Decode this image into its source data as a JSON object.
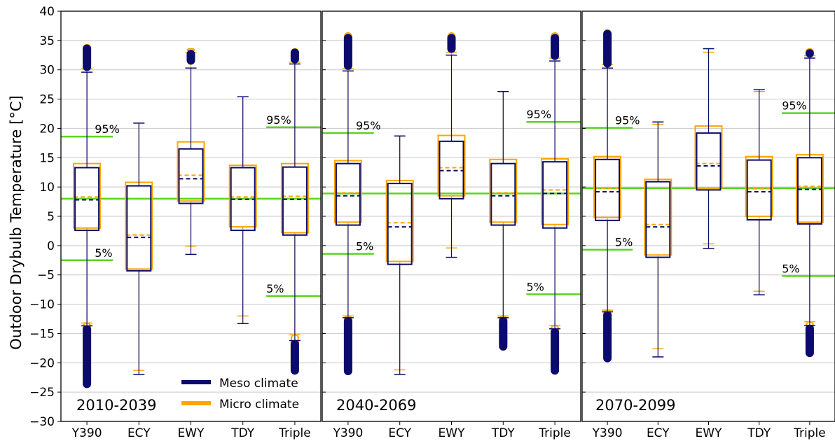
{
  "chart_data": {
    "type": "box",
    "ylabel": "Outdoor Drybulb Temperature [°C]",
    "ylim": [
      -30,
      40
    ],
    "yticks": [
      -30,
      -25,
      -20,
      -15,
      -10,
      -5,
      0,
      5,
      10,
      15,
      20,
      25,
      30,
      35,
      40
    ],
    "grid": "horizontal",
    "categories": [
      "Y390",
      "ECY",
      "EWY",
      "TDY",
      "Triple"
    ],
    "legend": {
      "position": "bottom, first panel",
      "entries": [
        {
          "label": "Meso climate",
          "color": "#0b0b6e"
        },
        {
          "label": "Micro climate",
          "color": "#ffa500"
        }
      ]
    },
    "colors": {
      "meso": "#0b0b6e",
      "micro": "#ffa500",
      "percentile_line": "#5bd41f",
      "grid": "#c8c8c8"
    },
    "panels": [
      {
        "title": "2010-2039",
        "median_line": 8.0,
        "p95": {
          "value": 18.6,
          "label": "95%",
          "placement": "left"
        },
        "p95b": {
          "value": 20.2,
          "label": "95%",
          "placement": "right"
        },
        "p5": {
          "value": -2.5,
          "label": "5%",
          "placement": "left"
        },
        "p5b": {
          "value": -8.6,
          "label": "5%",
          "placement": "right"
        },
        "boxes": [
          {
            "category": "Y390",
            "meso": {
              "whisker_low": -13.7,
              "q1": 2.6,
              "median": 7.8,
              "q3": 13.3,
              "whisker_high": 29.6,
              "outliers_low": [
                -24.2,
                -13.7
              ],
              "outliers_high": [
                29.9,
                34.2
              ]
            },
            "micro": {
              "whisker_low": -13.2,
              "q1": 3.0,
              "median": 8.3,
              "q3": 14.0,
              "whisker_high": 30.2,
              "outliers_low": [
                -23.2,
                -13.2
              ],
              "outliers_high": [
                30.5,
                34.3
              ]
            }
          },
          {
            "category": "ECY",
            "meso": {
              "whisker_low": -22.0,
              "q1": -4.3,
              "median": 1.4,
              "q3": 10.2,
              "whisker_high": 20.9
            },
            "micro": {
              "whisker_low": -21.3,
              "q1": -4.0,
              "median": 1.8,
              "q3": 10.8,
              "whisker_high": 20.9
            }
          },
          {
            "category": "EWY",
            "meso": {
              "whisker_low": -1.5,
              "q1": 7.2,
              "median": 11.4,
              "q3": 16.5,
              "whisker_high": 30.3,
              "outliers_high": [
                31.0,
                33.3
              ]
            },
            "micro": {
              "whisker_low": -0.1,
              "q1": 7.6,
              "median": 12.0,
              "q3": 17.7,
              "whisker_high": 32.9,
              "outliers_high": [
                33.2,
                33.6
              ]
            }
          },
          {
            "category": "TDY",
            "meso": {
              "whisker_low": -13.3,
              "q1": 2.6,
              "median": 7.9,
              "q3": 13.3,
              "whisker_high": 25.4
            },
            "micro": {
              "whisker_low": -12.0,
              "q1": 3.2,
              "median": 8.3,
              "q3": 13.7,
              "whisker_high": 25.4
            }
          },
          {
            "category": "Triple",
            "meso": {
              "whisker_low": -16.2,
              "q1": 1.8,
              "median": 7.9,
              "q3": 13.4,
              "whisker_high": 31.0,
              "outliers_low": [
                -21.9,
                -16.2
              ],
              "outliers_high": [
                31.2,
                33.5
              ]
            },
            "micro": {
              "whisker_low": -15.2,
              "q1": 2.2,
              "median": 8.4,
              "q3": 14.0,
              "whisker_high": 31.3,
              "outliers_low": [
                -21.0,
                -15.2
              ],
              "outliers_high": [
                31.5,
                33.6
              ]
            }
          }
        ]
      },
      {
        "title": "2040-2069",
        "median_line": 8.9,
        "p95": {
          "value": 19.2,
          "label": "95%",
          "placement": "left"
        },
        "p95b": {
          "value": 21.1,
          "label": "95%",
          "placement": "right"
        },
        "p5": {
          "value": -1.4,
          "label": "5%",
          "placement": "left"
        },
        "p5b": {
          "value": -8.3,
          "label": "5%",
          "placement": "right"
        },
        "boxes": [
          {
            "category": "Y390",
            "meso": {
              "whisker_low": -12.3,
              "q1": 3.5,
              "median": 8.5,
              "q3": 14.0,
              "whisker_high": 29.8,
              "outliers_low": [
                -22.0,
                -12.3
              ],
              "outliers_high": [
                30.1,
                36.0
              ]
            },
            "micro": {
              "whisker_low": -12.0,
              "q1": 4.0,
              "median": 9.0,
              "q3": 14.5,
              "whisker_high": 30.2,
              "outliers_low": [
                -21.7,
                -12.0
              ],
              "outliers_high": [
                30.5,
                36.3
              ]
            }
          },
          {
            "category": "ECY",
            "meso": {
              "whisker_low": -22.0,
              "q1": -3.2,
              "median": 3.2,
              "q3": 10.6,
              "whisker_high": 18.7
            },
            "micro": {
              "whisker_low": -21.2,
              "q1": -2.7,
              "median": 3.9,
              "q3": 11.1,
              "whisker_high": 18.7
            }
          },
          {
            "category": "EWY",
            "meso": {
              "whisker_low": -2.0,
              "q1": 8.0,
              "median": 12.8,
              "q3": 17.8,
              "whisker_high": 32.5,
              "outliers_high": [
                33.0,
                36.0
              ]
            },
            "micro": {
              "whisker_low": -0.4,
              "q1": 8.5,
              "median": 13.3,
              "q3": 18.8,
              "whisker_high": 33.0,
              "outliers_high": [
                34.0,
                36.3
              ]
            }
          },
          {
            "category": "TDY",
            "meso": {
              "whisker_low": -12.3,
              "q1": 3.5,
              "median": 8.5,
              "q3": 14.0,
              "whisker_high": 26.3,
              "outliers_low": [
                -17.8,
                -12.3
              ]
            },
            "micro": {
              "whisker_low": -12.0,
              "q1": 4.0,
              "median": 9.0,
              "q3": 14.7,
              "whisker_high": 26.3,
              "outliers_low": [
                -17.0,
                -12.0
              ]
            }
          },
          {
            "category": "Triple",
            "meso": {
              "whisker_low": -14.2,
              "q1": 3.0,
              "median": 8.9,
              "q3": 14.3,
              "whisker_high": 31.5,
              "outliers_low": [
                -21.9,
                -14.2
              ],
              "outliers_high": [
                31.8,
                36.0
              ]
            },
            "micro": {
              "whisker_low": -13.6,
              "q1": 3.6,
              "median": 9.5,
              "q3": 14.8,
              "whisker_high": 32.0,
              "outliers_low": [
                -21.0,
                -13.6
              ],
              "outliers_high": [
                32.3,
                36.3
              ]
            }
          }
        ]
      },
      {
        "title": "2070-2099",
        "median_line": 9.8,
        "p95": {
          "value": 20.1,
          "label": "95%",
          "placement": "left"
        },
        "p95b": {
          "value": 22.6,
          "label": "95%",
          "placement": "right"
        },
        "p5": {
          "value": -0.7,
          "label": "5%",
          "placement": "left"
        },
        "p5b": {
          "value": -5.2,
          "label": "5%",
          "placement": "right"
        },
        "boxes": [
          {
            "category": "Y390",
            "meso": {
              "whisker_low": -11.3,
              "q1": 4.3,
              "median": 9.2,
              "q3": 14.7,
              "whisker_high": 30.3,
              "outliers_low": [
                -19.8,
                -11.3
              ],
              "outliers_high": [
                30.5,
                36.7
              ]
            },
            "micro": {
              "whisker_low": -11.0,
              "q1": 4.8,
              "median": 9.8,
              "q3": 15.2,
              "whisker_high": 30.9,
              "outliers_low": [
                -18.8,
                -11.0
              ],
              "outliers_high": [
                31.2,
                36.8
              ]
            }
          },
          {
            "category": "ECY",
            "meso": {
              "whisker_low": -19.0,
              "q1": -2.0,
              "median": 3.2,
              "q3": 10.9,
              "whisker_high": 21.1
            },
            "micro": {
              "whisker_low": -17.6,
              "q1": -1.6,
              "median": 3.6,
              "q3": 11.3,
              "whisker_high": 20.7
            }
          },
          {
            "category": "EWY",
            "meso": {
              "whisker_low": -0.5,
              "q1": 9.5,
              "median": 13.6,
              "q3": 19.2,
              "whisker_high": 33.6
            },
            "micro": {
              "whisker_low": 0.3,
              "q1": 9.8,
              "median": 14.0,
              "q3": 20.4,
              "whisker_high": 33.0
            }
          },
          {
            "category": "TDY",
            "meso": {
              "whisker_low": -8.4,
              "q1": 4.4,
              "median": 9.2,
              "q3": 14.6,
              "whisker_high": 26.6
            },
            "micro": {
              "whisker_low": -7.8,
              "q1": 5.0,
              "median": 9.7,
              "q3": 15.2,
              "whisker_high": 26.3
            }
          },
          {
            "category": "Triple",
            "meso": {
              "whisker_low": -13.6,
              "q1": 3.7,
              "median": 9.6,
              "q3": 15.0,
              "whisker_high": 32.0,
              "outliers_low": [
                -18.9,
                -13.6
              ],
              "outliers_high": [
                32.2,
                33.4
              ]
            },
            "micro": {
              "whisker_low": -13.0,
              "q1": 4.0,
              "median": 10.1,
              "q3": 15.5,
              "whisker_high": 32.4,
              "outliers_low": [
                -18.0,
                -13.0
              ],
              "outliers_high": [
                32.6,
                33.6
              ]
            }
          }
        ]
      }
    ]
  }
}
